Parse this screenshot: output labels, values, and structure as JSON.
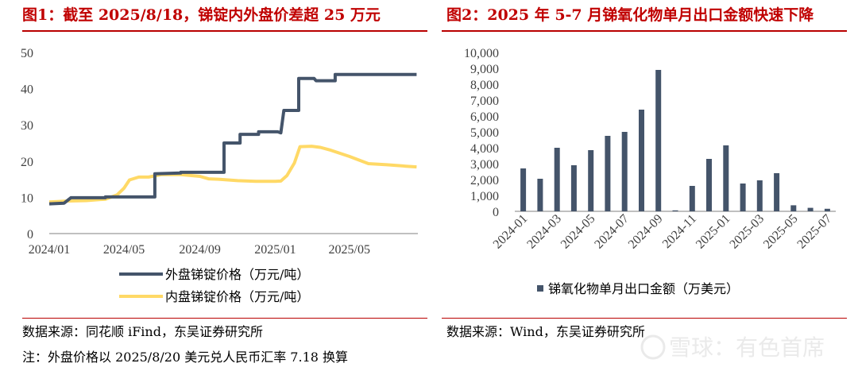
{
  "left": {
    "title": "图1：截至 2025/8/18，锑锭内外盘价差超 25 万元",
    "source": "数据来源：同花顺 iFind，东吴证券研究所",
    "note": "注：外盘价格以 2025/8/20 美元兑人民币汇率 7.18 换算"
  },
  "right": {
    "title": "图2：2025 年 5-7 月锑氧化物单月出口金额快速下降",
    "source": "数据来源：Wind，东吴证券研究所"
  },
  "watermark": "雪球：有色首席",
  "colors": {
    "title": "#c00000",
    "rule": "#b90000",
    "series_foreign": "#44546a",
    "series_domestic": "#ffd966",
    "bar": "#44546a"
  },
  "chart_data": [
    {
      "type": "line",
      "x_ticks": [
        "2024/01",
        "2024/05",
        "2024/09",
        "2025/01",
        "2025/05"
      ],
      "ylim": [
        0,
        50
      ],
      "y_ticks": [
        "0",
        "10",
        "20",
        "30",
        "40",
        "50"
      ],
      "grid": false,
      "legend_position": "bottom",
      "series": [
        {
          "name": "外盘锑锭价格（万元/吨）",
          "color": "#44546a",
          "style": "step",
          "points": [
            [
              "2024-01-01",
              8.2
            ],
            [
              "2024-01-25",
              8.4
            ],
            [
              "2024-02-05",
              9.9
            ],
            [
              "2024-04-01",
              9.9
            ],
            [
              "2024-04-01",
              10.1
            ],
            [
              "2024-06-20",
              10.1
            ],
            [
              "2024-06-20",
              16.5
            ],
            [
              "2024-08-01",
              16.7
            ],
            [
              "2024-08-01",
              16.9
            ],
            [
              "2024-10-10",
              16.9
            ],
            [
              "2024-10-10",
              25.0
            ],
            [
              "2024-11-05",
              25.0
            ],
            [
              "2024-11-05",
              27.4
            ],
            [
              "2024-12-05",
              27.4
            ],
            [
              "2024-12-05",
              28.1
            ],
            [
              "2025-01-05",
              28.1
            ],
            [
              "2025-01-10",
              27.8
            ],
            [
              "2025-01-15",
              34.0
            ],
            [
              "2025-02-08",
              34.0
            ],
            [
              "2025-02-08",
              42.8
            ],
            [
              "2025-03-05",
              42.8
            ],
            [
              "2025-03-08",
              42.2
            ],
            [
              "2025-04-08",
              42.2
            ],
            [
              "2025-04-08",
              43.9
            ],
            [
              "2025-08-18",
              43.9
            ]
          ]
        },
        {
          "name": "内盘锑锭价格（万元/吨）",
          "color": "#ffd966",
          "style": "line",
          "points": [
            [
              "2024-01-01",
              8.7
            ],
            [
              "2024-02-01",
              9.0
            ],
            [
              "2024-03-01",
              9.1
            ],
            [
              "2024-04-01",
              9.5
            ],
            [
              "2024-04-20",
              10.7
            ],
            [
              "2024-05-01",
              12.5
            ],
            [
              "2024-05-10",
              14.8
            ],
            [
              "2024-05-25",
              15.6
            ],
            [
              "2024-06-10",
              15.6
            ],
            [
              "2024-07-01",
              16.3
            ],
            [
              "2024-08-01",
              16.3
            ],
            [
              "2024-09-01",
              15.8
            ],
            [
              "2024-09-15",
              15.1
            ],
            [
              "2024-10-01",
              15.0
            ],
            [
              "2024-11-01",
              14.6
            ],
            [
              "2024-12-01",
              14.4
            ],
            [
              "2025-01-01",
              14.4
            ],
            [
              "2025-01-10",
              14.5
            ],
            [
              "2025-01-20",
              16.0
            ],
            [
              "2025-02-01",
              19.5
            ],
            [
              "2025-02-10",
              24.0
            ],
            [
              "2025-03-01",
              24.1
            ],
            [
              "2025-03-15",
              23.8
            ],
            [
              "2025-04-01",
              23.0
            ],
            [
              "2025-05-01",
              21.3
            ],
            [
              "2025-06-01",
              19.3
            ],
            [
              "2025-07-01",
              19.0
            ],
            [
              "2025-08-01",
              18.6
            ],
            [
              "2025-08-18",
              18.4
            ]
          ]
        }
      ]
    },
    {
      "type": "bar",
      "categories": [
        "2024-01",
        "2024-02",
        "2024-03",
        "2024-04",
        "2024-05",
        "2024-06",
        "2024-07",
        "2024-08",
        "2024-09",
        "2024-10",
        "2024-11",
        "2024-12",
        "2025-01",
        "2025-02",
        "2025-03",
        "2025-04",
        "2025-05",
        "2025-06",
        "2025-07"
      ],
      "x_tick_labels": [
        "2024-01",
        "2024-03",
        "2024-05",
        "2024-07",
        "2024-09",
        "2024-11",
        "2025-01",
        "2025-03",
        "2025-05",
        "2025-07"
      ],
      "series": [
        {
          "name": "锑氧化物单月出口金额（万美元）",
          "values": [
            2700,
            2050,
            4000,
            2900,
            3850,
            4750,
            5000,
            6400,
            8900,
            60,
            1600,
            3300,
            4150,
            1750,
            1950,
            2400,
            380,
            220,
            160
          ]
        }
      ],
      "ylim": [
        0,
        10000
      ],
      "y_ticks": [
        "0",
        "1,000",
        "2,000",
        "3,000",
        "4,000",
        "5,000",
        "6,000",
        "7,000",
        "8,000",
        "9,000",
        "10,000"
      ],
      "grid": false,
      "legend_position": "bottom"
    }
  ]
}
